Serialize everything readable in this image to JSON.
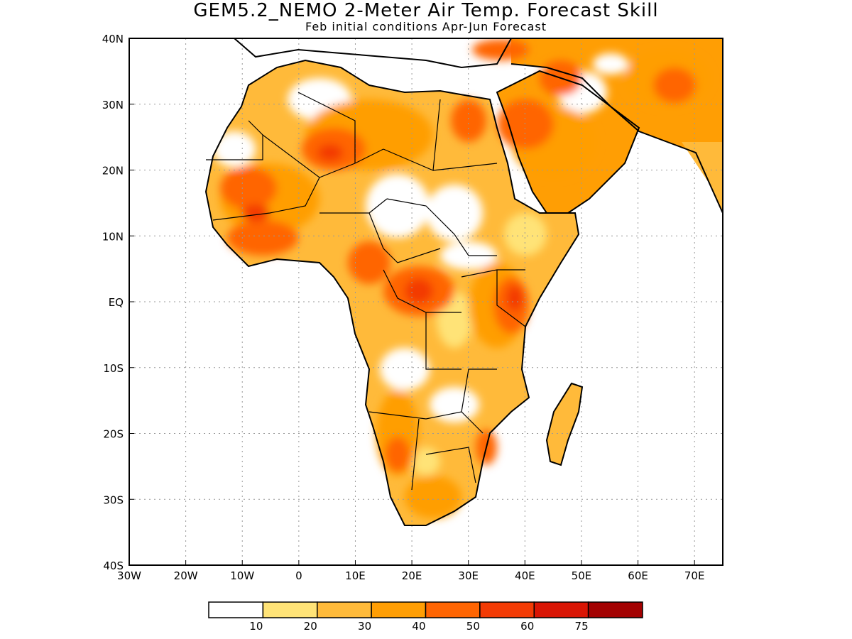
{
  "title": "GEM5.2_NEMO 2-Meter Air Temp. Forecast Skill",
  "subtitle": "Feb initial conditions  Apr-Jun Forecast",
  "map": {
    "lon_range": [
      -30,
      75
    ],
    "lat_range": [
      -40,
      40
    ],
    "lon_ticks": [
      {
        "value": -30,
        "label": "30W"
      },
      {
        "value": -20,
        "label": "20W"
      },
      {
        "value": -10,
        "label": "10W"
      },
      {
        "value": 0,
        "label": "0"
      },
      {
        "value": 10,
        "label": "10E"
      },
      {
        "value": 20,
        "label": "20E"
      },
      {
        "value": 30,
        "label": "30E"
      },
      {
        "value": 40,
        "label": "40E"
      },
      {
        "value": 50,
        "label": "50E"
      },
      {
        "value": 60,
        "label": "60E"
      },
      {
        "value": 70,
        "label": "70E"
      }
    ],
    "lat_ticks": [
      {
        "value": 40,
        "label": "40N"
      },
      {
        "value": 30,
        "label": "30N"
      },
      {
        "value": 20,
        "label": "20N"
      },
      {
        "value": 10,
        "label": "10N"
      },
      {
        "value": 0,
        "label": "EQ"
      },
      {
        "value": -10,
        "label": "10S"
      },
      {
        "value": -20,
        "label": "20S"
      },
      {
        "value": -30,
        "label": "30S"
      },
      {
        "value": -40,
        "label": "40S"
      }
    ],
    "grid": "dotted"
  },
  "colorbar": {
    "bins": [
      {
        "color": "#ffffff"
      },
      {
        "color": "#ffe377"
      },
      {
        "color": "#ffba3a"
      },
      {
        "color": "#ff9e04"
      },
      {
        "color": "#ff6502"
      },
      {
        "color": "#f33b05"
      },
      {
        "color": "#d91504"
      },
      {
        "color": "#a30101"
      }
    ],
    "labels": [
      "10",
      "20",
      "30",
      "40",
      "50",
      "60",
      "75"
    ]
  }
}
